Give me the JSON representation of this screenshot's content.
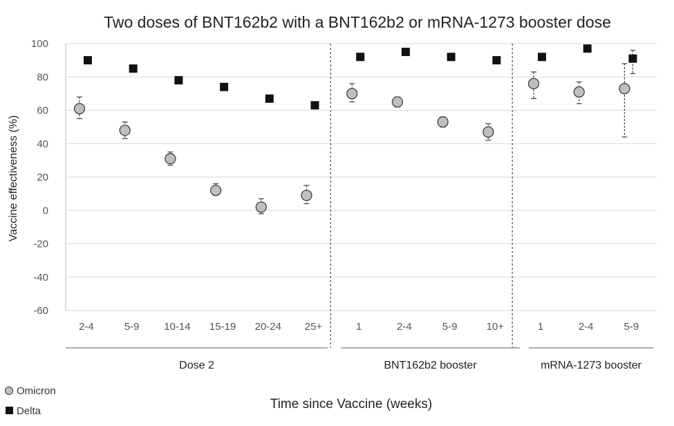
{
  "chart_data": {
    "type": "scatter",
    "title": "Two doses of BNT162b2 with a BNT162b2 or mRNA-1273 booster dose",
    "xlabel": "Time since Vaccine (weeks)",
    "ylabel": "Vaccine effectiveness (%)",
    "ylim": [
      -60,
      100
    ],
    "yticks": [
      "-60",
      "-40",
      "-20",
      "0",
      "20",
      "40",
      "60",
      "80",
      "100"
    ],
    "grid": true,
    "legend_position": "bottom-left",
    "categories": [
      "2-4",
      "5-9",
      "10-14",
      "15-19",
      "20-24",
      "25+",
      "1",
      "2-4",
      "5-9",
      "10+",
      "1",
      "2-4",
      "5-9"
    ],
    "groups": [
      {
        "label": "Dose 2",
        "count": 6
      },
      {
        "label": "BNT162b2 booster",
        "count": 4
      },
      {
        "label": "mRNA-1273 booster",
        "count": 3
      }
    ],
    "series": [
      {
        "name": "Omicron",
        "marker": "circle",
        "color": "#bfbfbf",
        "values": [
          61,
          48,
          31,
          12,
          2,
          9,
          70,
          65,
          53,
          47,
          76,
          71,
          73
        ],
        "ci_low": [
          55,
          43,
          27,
          9,
          -2,
          4,
          65,
          62,
          50,
          42,
          67,
          64,
          44
        ],
        "ci_high": [
          68,
          53,
          35,
          16,
          7,
          15,
          76,
          68,
          56,
          52,
          83,
          77,
          88
        ]
      },
      {
        "name": "Delta",
        "marker": "square",
        "color": "#111111",
        "values": [
          90,
          85,
          78,
          74,
          67,
          63,
          92,
          95,
          92,
          90,
          92,
          97,
          91
        ],
        "ci_low": [
          null,
          null,
          null,
          null,
          null,
          null,
          null,
          null,
          null,
          null,
          null,
          null,
          82
        ],
        "ci_high": [
          null,
          null,
          null,
          null,
          null,
          null,
          null,
          null,
          null,
          null,
          null,
          null,
          96
        ]
      }
    ]
  }
}
